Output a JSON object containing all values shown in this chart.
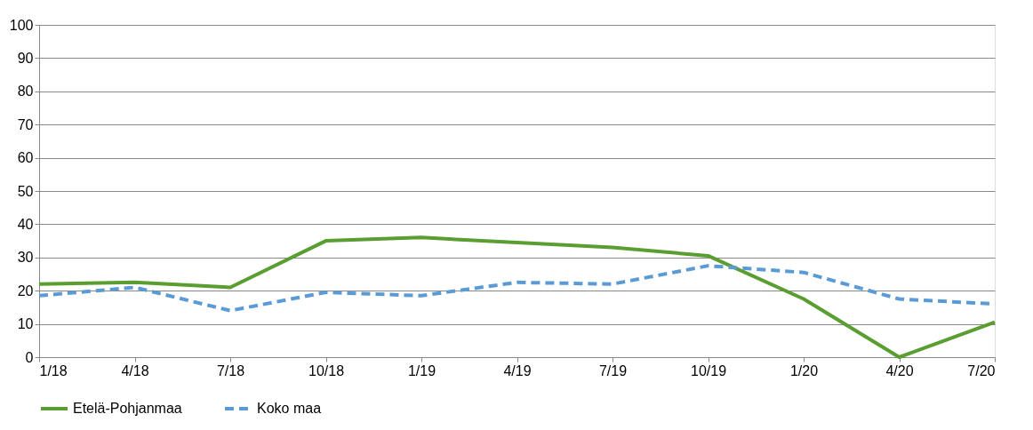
{
  "chart_data": {
    "type": "line",
    "categories": [
      "1/18",
      "4/18",
      "7/18",
      "10/18",
      "1/19",
      "4/19",
      "7/19",
      "10/19",
      "1/20",
      "4/20",
      "7/20"
    ],
    "series": [
      {
        "name": "Etelä-Pohjanmaa",
        "color": "#5a9e32",
        "line_style": "solid",
        "values": [
          22,
          22.5,
          21,
          35,
          36,
          34.5,
          33,
          30.5,
          17.5,
          0,
          10.5
        ]
      },
      {
        "name": "Koko maa",
        "color": "#5b9bd5",
        "line_style": "dashed",
        "values": [
          18.5,
          21,
          14,
          19.5,
          18.5,
          22.5,
          22,
          27.5,
          25.5,
          17.5,
          16
        ]
      }
    ],
    "ylim": [
      0,
      100
    ],
    "yticks": [
      0,
      10,
      20,
      30,
      40,
      50,
      60,
      70,
      80,
      90,
      100
    ],
    "grid": "y",
    "legend": "bottom",
    "marker": "none"
  }
}
